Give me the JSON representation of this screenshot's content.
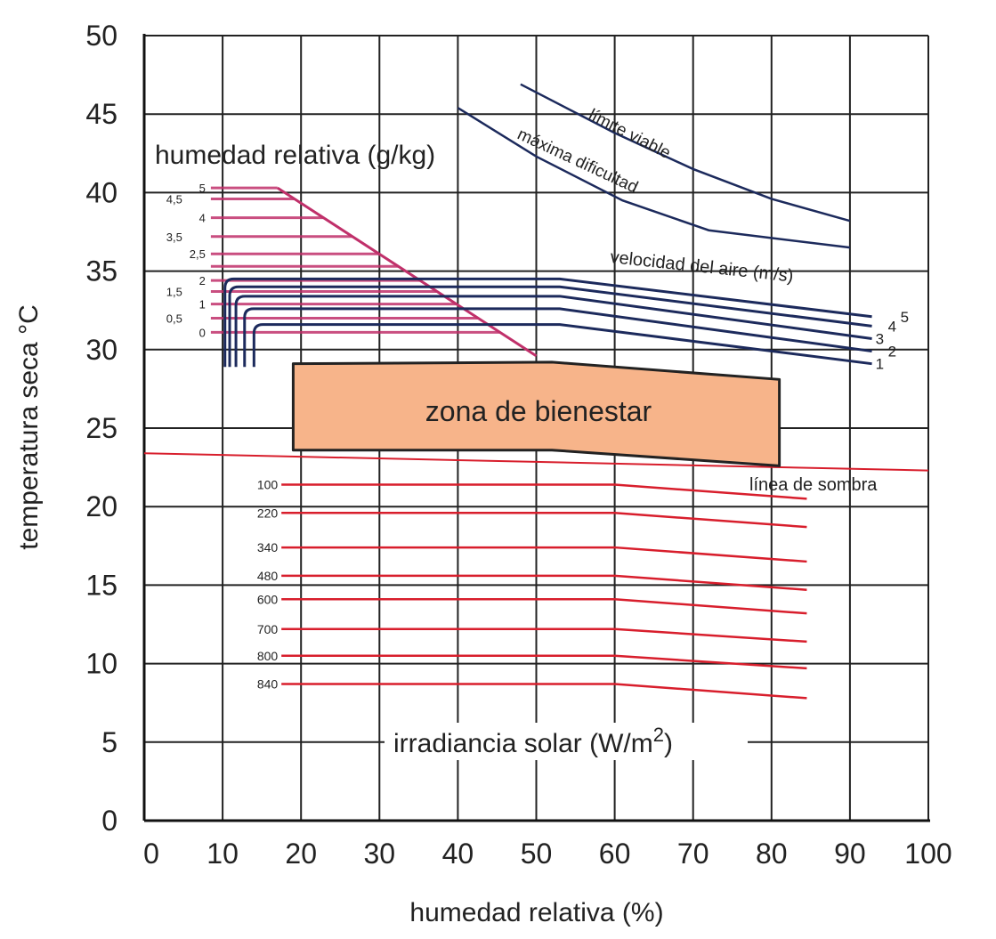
{
  "chart_data": {
    "type": "line",
    "xlabel": "humedad relativa (%)",
    "ylabel": "temperatura seca °C",
    "xlim": [
      0,
      100
    ],
    "ylim": [
      0,
      50
    ],
    "xticks": [
      "0",
      "10",
      "20",
      "30",
      "40",
      "50",
      "60",
      "70",
      "80",
      "90",
      "100"
    ],
    "yticks": [
      "0",
      "5",
      "10",
      "15",
      "20",
      "25",
      "30",
      "35",
      "40",
      "45",
      "50"
    ],
    "grid": true,
    "colors": {
      "humidity": "#c0306a",
      "wind": "#1c2a5c",
      "irradiance": "#d81e2c",
      "zone_fill": "#f7b48a",
      "grid": "#222222"
    },
    "humidity": {
      "title": "humedad relativa (g/kg)",
      "boundary": [
        [
          17,
          40.3
        ],
        [
          50,
          29.6
        ]
      ],
      "start_x": 8.5,
      "lines": [
        {
          "label": "5",
          "y": 40.3
        },
        {
          "label": "4,5",
          "y": 39.6
        },
        {
          "label": "4",
          "y": 38.4
        },
        {
          "label": "3,5",
          "y": 37.2
        },
        {
          "label": "2,5",
          "y": 36.1
        },
        {
          "label": "",
          "y": 35.3
        },
        {
          "label": "2",
          "y": 34.4
        },
        {
          "label": "1,5",
          "y": 33.7
        },
        {
          "label": "1",
          "y": 32.9
        },
        {
          "label": "0,5",
          "y": 32.0
        },
        {
          "label": "0",
          "y": 31.1
        }
      ]
    },
    "wind": {
      "title": "velocidad del aire (m/s)",
      "bottom_y": 28.9,
      "lines": [
        {
          "label": "1",
          "start_x": 14.0,
          "points": [
            [
              53,
              31.6
            ],
            [
              92.8,
              29.1
            ]
          ]
        },
        {
          "label": "2",
          "start_x": 12.8,
          "points": [
            [
              53,
              32.6
            ],
            [
              92.8,
              29.9
            ]
          ]
        },
        {
          "label": "3",
          "start_x": 11.7,
          "points": [
            [
              53,
              33.4
            ],
            [
              92.8,
              30.7
            ]
          ]
        },
        {
          "label": "4",
          "start_x": 10.9,
          "points": [
            [
              53,
              34.0
            ],
            [
              92.8,
              31.5
            ]
          ]
        },
        {
          "label": "5",
          "start_x": 10.3,
          "points": [
            [
              53,
              34.5
            ],
            [
              92.8,
              32.1
            ]
          ]
        }
      ]
    },
    "limits": [
      {
        "label": "límite viable",
        "points": [
          [
            48,
            46.9
          ],
          [
            60,
            43.8
          ],
          [
            70,
            41.5
          ],
          [
            80,
            39.6
          ],
          [
            90,
            38.2
          ]
        ]
      },
      {
        "label": "máxima dificultad",
        "points": [
          [
            40,
            45.4
          ],
          [
            50,
            42.3
          ],
          [
            61,
            39.5
          ],
          [
            72,
            37.6
          ],
          [
            90,
            36.5
          ]
        ]
      }
    ],
    "comfort_zone": {
      "label": "zona de bienestar",
      "polygon": [
        [
          19,
          29.1
        ],
        [
          52,
          29.2
        ],
        [
          81,
          28.1
        ],
        [
          81,
          22.6
        ],
        [
          52,
          23.6
        ],
        [
          19,
          23.6
        ]
      ]
    },
    "shadow_line": {
      "label": "línea de sombra",
      "points": [
        [
          0,
          23.4
        ],
        [
          100,
          22.3
        ]
      ]
    },
    "irradiance": {
      "title_text": "irradiancia solar (W/m",
      "title_sup": "2",
      "title_close": ")",
      "start_x": 17.5,
      "break_x": 60,
      "end_x": 84.5,
      "lines": [
        {
          "label": "100",
          "y_start": 21.4,
          "y_end": 20.5
        },
        {
          "label": "220",
          "y_start": 19.6,
          "y_end": 18.7
        },
        {
          "label": "340",
          "y_start": 17.4,
          "y_end": 16.5
        },
        {
          "label": "480",
          "y_start": 15.6,
          "y_end": 14.7
        },
        {
          "label": "600",
          "y_start": 14.1,
          "y_end": 13.2
        },
        {
          "label": "700",
          "y_start": 12.2,
          "y_end": 11.4
        },
        {
          "label": "800",
          "y_start": 10.5,
          "y_end": 9.7
        },
        {
          "label": "840",
          "y_start": 8.7,
          "y_end": 7.8
        }
      ]
    }
  }
}
